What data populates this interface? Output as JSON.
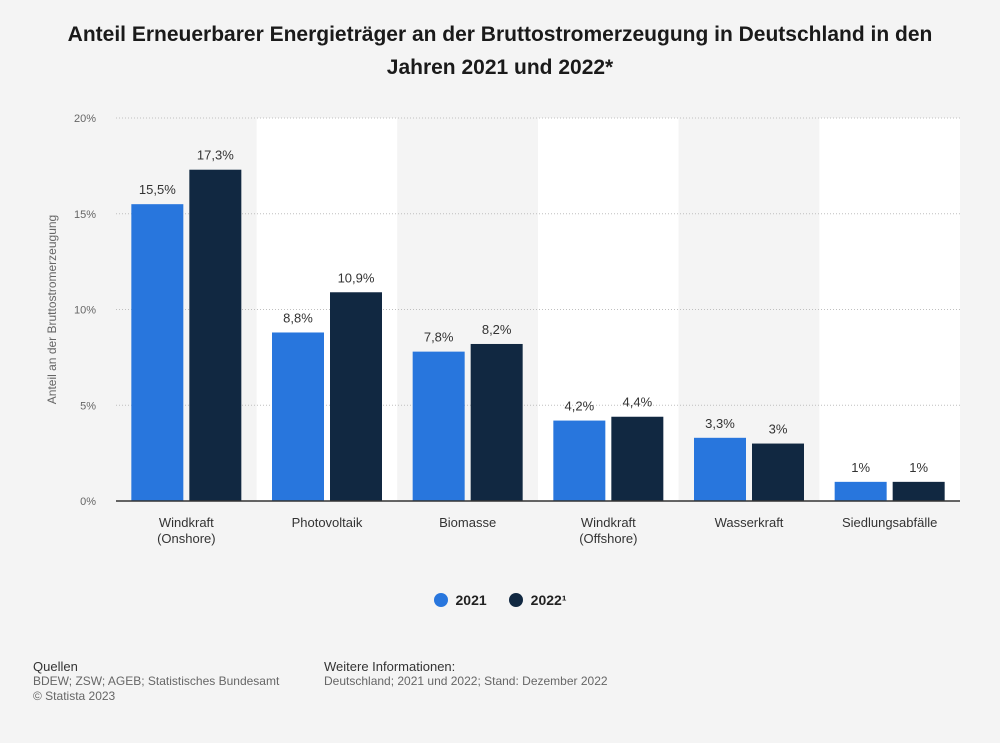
{
  "title": "Anteil Erneuerbarer Energieträger an der Bruttostromerzeugung in Deutschland in den Jahren 2021 und 2022*",
  "chart_data": {
    "type": "bar",
    "title": "Anteil Erneuerbarer Energieträger an der Bruttostromerzeugung in Deutschland in den Jahren 2021 und 2022*",
    "ylabel": "Anteil an der Bruttostromerzeugung",
    "xlabel": "",
    "ylim": [
      0,
      20
    ],
    "yticks": [
      {
        "value": 0,
        "label": "0%"
      },
      {
        "value": 5,
        "label": "5%"
      },
      {
        "value": 10,
        "label": "10%"
      },
      {
        "value": 15,
        "label": "15%"
      },
      {
        "value": 20,
        "label": "20%"
      }
    ],
    "categories": [
      [
        "Windkraft",
        "(Onshore)"
      ],
      [
        "Photovoltaik"
      ],
      [
        "Biomasse"
      ],
      [
        "Windkraft",
        "(Offshore)"
      ],
      [
        "Wasserkraft"
      ],
      [
        "Siedlungsabfälle"
      ]
    ],
    "series": [
      {
        "name": "2021",
        "color": "#2876dd",
        "values": [
          15.5,
          8.8,
          7.8,
          4.2,
          3.3,
          1
        ],
        "labels": [
          "15,5%",
          "8,8%",
          "7,8%",
          "4,2%",
          "3,3%",
          "1%"
        ]
      },
      {
        "name": "2022¹",
        "color": "#112841",
        "values": [
          17.3,
          10.9,
          8.2,
          4.4,
          3,
          1
        ],
        "labels": [
          "17,3%",
          "10,9%",
          "8,2%",
          "4,4%",
          "3%",
          "1%"
        ]
      }
    ],
    "grid": true,
    "legend_position": "bottom"
  },
  "legend": [
    {
      "label": "2021",
      "color": "#2876dd"
    },
    {
      "label": "2022¹",
      "color": "#112841"
    }
  ],
  "footer": {
    "sources_head": "Quellen",
    "sources_line1": "BDEW; ZSW; AGEB; Statistisches Bundesamt",
    "sources_line2": "© Statista 2023",
    "info_head": "Weitere Informationen:",
    "info_line1": "Deutschland; 2021 und 2022; Stand: Dezember 2022"
  }
}
